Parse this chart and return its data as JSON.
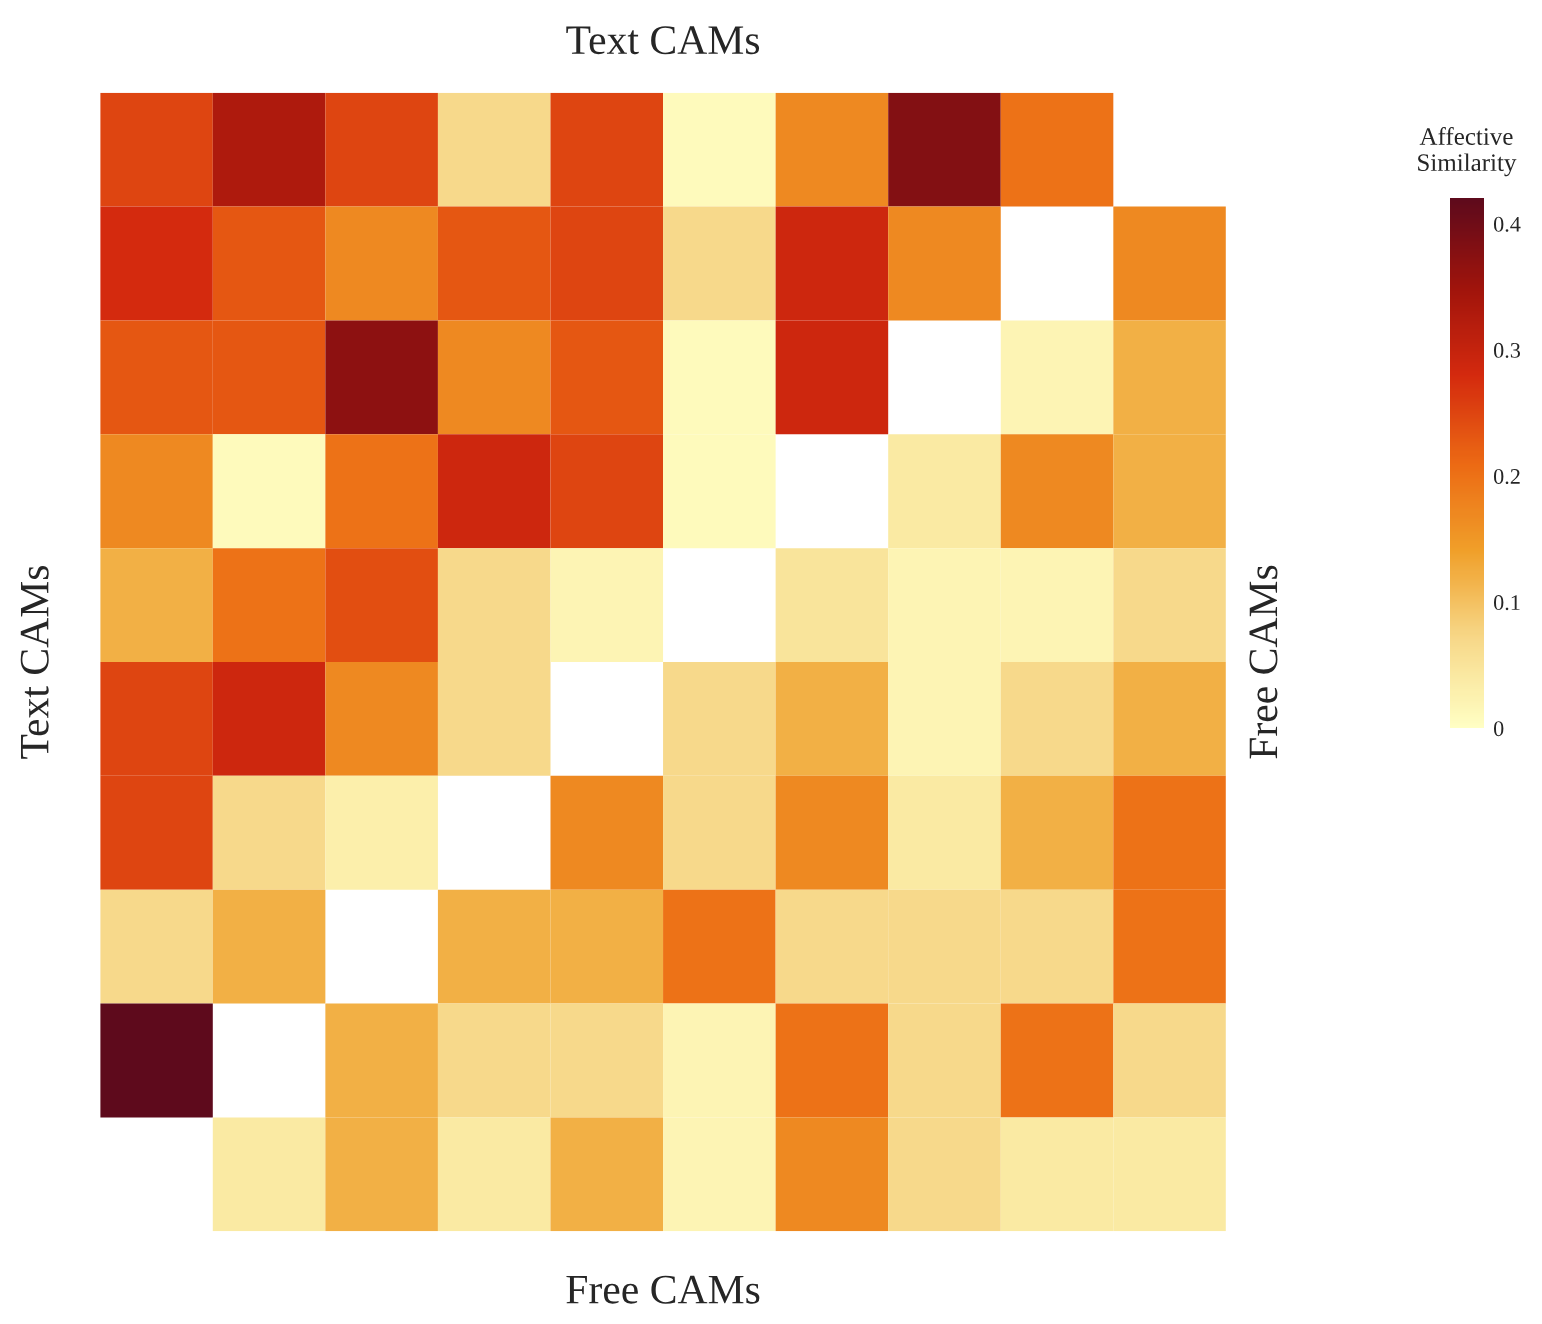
{
  "chart_data": {
    "type": "heatmap",
    "title": "Text CAMs",
    "xlabel": "Free CAMs",
    "ylabel": "Text CAMs",
    "y2label": "Free CAMs",
    "clabel": "Affective\nSimilarity",
    "categories": [
      null,
      null,
      null,
      null,
      null,
      null,
      null,
      null,
      null,
      null
    ],
    "y_categories": [
      null,
      null,
      null,
      null,
      null,
      null,
      null,
      null,
      null,
      null
    ],
    "cells": [
      [
        0.25,
        0.33,
        0.25,
        0.07,
        0.25,
        0.01,
        0.17,
        0.38,
        0.2,
        null
      ],
      [
        0.28,
        0.23,
        0.17,
        0.23,
        0.25,
        0.07,
        0.29,
        0.17,
        null,
        0.17
      ],
      [
        0.23,
        0.23,
        0.37,
        0.17,
        0.23,
        0.01,
        0.29,
        null,
        0.02,
        0.12
      ],
      [
        0.17,
        0.01,
        0.2,
        0.29,
        0.25,
        0.01,
        null,
        0.04,
        0.17,
        0.12
      ],
      [
        0.12,
        0.2,
        0.24,
        0.07,
        0.02,
        null,
        0.05,
        0.02,
        0.02,
        0.07
      ],
      [
        0.25,
        0.29,
        0.17,
        0.07,
        null,
        0.07,
        0.12,
        0.02,
        0.07,
        0.12
      ],
      [
        0.25,
        0.07,
        0.03,
        null,
        0.17,
        0.07,
        0.17,
        0.04,
        0.12,
        0.2
      ],
      [
        0.07,
        0.12,
        null,
        0.12,
        0.12,
        0.2,
        0.07,
        0.07,
        0.07,
        0.2
      ],
      [
        0.42,
        null,
        0.12,
        0.07,
        0.07,
        0.02,
        0.2,
        0.07,
        0.2,
        0.07
      ],
      [
        null,
        0.04,
        0.12,
        0.04,
        0.12,
        0.02,
        0.17,
        0.07,
        0.04,
        0.04
      ]
    ],
    "clim": [
      0,
      0.42
    ],
    "cticks": [
      0,
      0.1,
      0.2,
      0.3,
      0.4
    ]
  }
}
